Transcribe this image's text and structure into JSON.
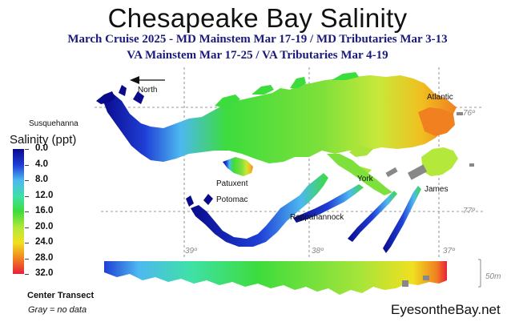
{
  "title": "Chesapeake Bay Salinity",
  "subtitle_line1": "March Cruise 2025 - MD Mainstem Mar 17-19 / MD Tributaries Mar 3-13",
  "subtitle_line2": "VA Mainstem Mar 17-25 /  VA Tributaries Mar 4-19",
  "legend": {
    "title": "Salinity (ppt)",
    "ticks": [
      "0.0",
      "4.0",
      "8.0",
      "12.0",
      "16.0",
      "20.0",
      "24.0",
      "28.0",
      "32.0"
    ],
    "colors": [
      "#0a0a8c",
      "#1f3fd6",
      "#4db8f0",
      "#3fe0a8",
      "#3ddc3d",
      "#b4e83a",
      "#f0e020",
      "#f08020",
      "#e8203a"
    ]
  },
  "map_labels": {
    "north": "North",
    "susquehanna": "Susquehanna",
    "atlantic": "Atlantic",
    "patuxent": "Patuxent",
    "potomac": "Potomac",
    "rappahannock": "Rappahannock",
    "york": "York",
    "james": "James"
  },
  "grid_labels": {
    "lon_39": "39º",
    "lon_38": "38º",
    "lon_37": "37º",
    "lat_76": "76º",
    "lat_77": "77º"
  },
  "transect": {
    "label": "Center Transect",
    "depth_scale": "50m"
  },
  "gray_note": "Gray = no data",
  "brand": "EyesontheBay.net"
}
